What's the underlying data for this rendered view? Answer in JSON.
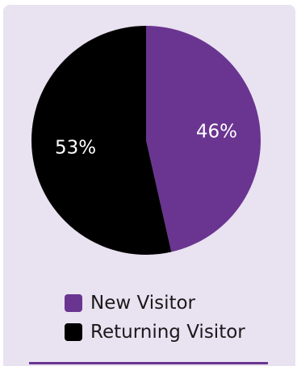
{
  "chart_data": {
    "type": "pie",
    "title": "",
    "categories": [
      "New Visitor",
      "Returning Visitor"
    ],
    "values": [
      46,
      53
    ],
    "labels": [
      "46%",
      "53%"
    ],
    "colors": [
      "#6a3591",
      "#000000"
    ],
    "legend_position": "bottom"
  },
  "legend": {
    "items": [
      {
        "label": "New Visitor",
        "color": "#6a3591"
      },
      {
        "label": "Returning Visitor",
        "color": "#000000"
      }
    ]
  }
}
